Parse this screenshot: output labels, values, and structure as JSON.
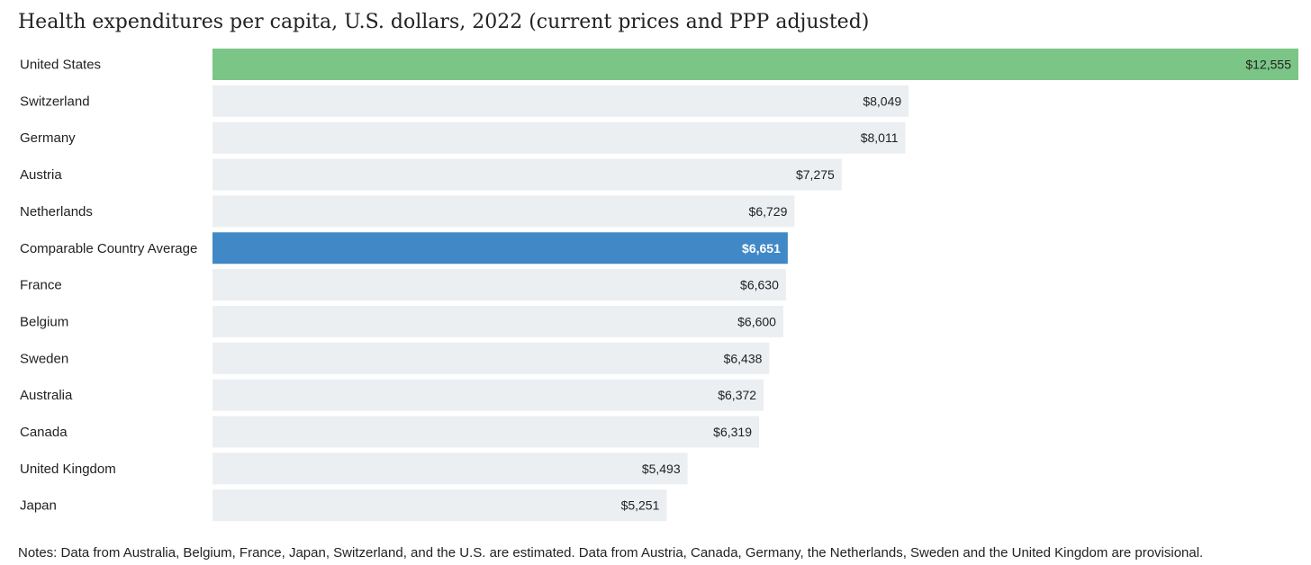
{
  "chart_data": {
    "type": "bar",
    "orientation": "horizontal",
    "title": "Health expenditures per capita, U.S. dollars, 2022 (current prices and PPP adjusted)",
    "categories": [
      "United States",
      "Switzerland",
      "Germany",
      "Austria",
      "Netherlands",
      "Comparable Country Average",
      "France",
      "Belgium",
      "Sweden",
      "Australia",
      "Canada",
      "United Kingdom",
      "Japan"
    ],
    "values": [
      12555,
      8049,
      8011,
      7275,
      6729,
      6651,
      6630,
      6600,
      6438,
      6372,
      6319,
      5493,
      5251
    ],
    "value_labels": [
      "$12,555",
      "$8,049",
      "$8,011",
      "$7,275",
      "$6,729",
      "$6,651",
      "$6,630",
      "$6,600",
      "$6,438",
      "$6,372",
      "$6,319",
      "$5,493",
      "$5,251"
    ],
    "xlim": [
      0,
      12555
    ],
    "grid": false,
    "legend": "none",
    "colors": {
      "default_bar": "#ebeff2",
      "highlight_us": "#7bc586",
      "highlight_average": "#4188c6",
      "default_label": "#222222",
      "highlight_label": "#ffffff"
    },
    "highlights": {
      "United States": "highlight_us",
      "Comparable Country Average": "highlight_average"
    },
    "note": "Notes: Data from Australia, Belgium, France, Japan, Switzerland, and the U.S. are estimated. Data from Austria, Canada, Germany, the Netherlands, Sweden and the United Kingdom are provisional."
  }
}
